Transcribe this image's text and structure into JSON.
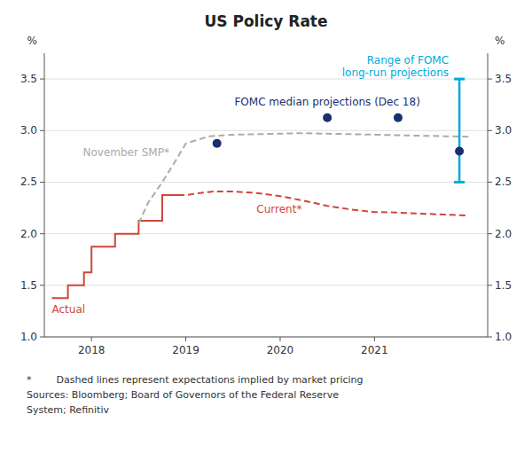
{
  "chart_data": {
    "type": "line",
    "title": "US Policy Rate",
    "ylabel": "%",
    "y2label": "%",
    "xlim": [
      2017.5,
      2022.2
    ],
    "xticks": [
      2018,
      2019,
      2020,
      2021
    ],
    "ylim": [
      1.0,
      3.75
    ],
    "yticks": [
      {
        "value": 1.0,
        "label": "1.0"
      },
      {
        "value": 1.5,
        "label": "1.5"
      },
      {
        "value": 2.0,
        "label": "2.0"
      },
      {
        "value": 2.5,
        "label": "2.5"
      },
      {
        "value": 3.0,
        "label": "3.0"
      },
      {
        "value": 3.5,
        "label": "3.5"
      }
    ],
    "y2lim": [
      1.0,
      3.75
    ],
    "y2ticks": [
      {
        "value": 1.0,
        "label": "1.0"
      },
      {
        "value": 1.5,
        "label": "1.5"
      },
      {
        "value": 2.0,
        "label": "2.0"
      },
      {
        "value": 2.5,
        "label": "2.5"
      },
      {
        "value": 3.0,
        "label": "3.0"
      },
      {
        "value": 3.5,
        "label": "3.5"
      }
    ],
    "grid": true,
    "series": [
      {
        "name": "Actual",
        "type": "line",
        "line_style": "solid",
        "color": "#D0453A",
        "x": [
          2017.58,
          2017.75,
          2017.75,
          2017.92,
          2017.92,
          2018.0,
          2018.0,
          2018.25,
          2018.25,
          2018.5,
          2018.5,
          2018.75,
          2018.75,
          2018.92,
          2018.92
        ],
        "values": [
          1.375,
          1.375,
          1.5,
          1.5,
          1.625,
          1.625,
          1.875,
          1.875,
          2.0,
          2.0,
          2.125,
          2.125,
          2.375,
          2.375,
          2.375
        ]
      },
      {
        "name": "Current*",
        "type": "line",
        "line_style": "dashed",
        "color": "#D0453A",
        "x": [
          2018.92,
          2019.0,
          2019.15,
          2019.3,
          2019.5,
          2019.75,
          2020.0,
          2020.25,
          2020.5,
          2020.75,
          2021.0,
          2021.25,
          2021.5,
          2021.75,
          2022.0
        ],
        "values": [
          2.375,
          2.375,
          2.395,
          2.41,
          2.41,
          2.395,
          2.365,
          2.32,
          2.27,
          2.235,
          2.21,
          2.205,
          2.195,
          2.185,
          2.175
        ]
      },
      {
        "name": "November SMP*",
        "type": "line",
        "line_style": "dashed",
        "color": "#AAAAAA",
        "x": [
          2018.5,
          2018.6,
          2018.75,
          2018.9,
          2019.0,
          2019.25,
          2019.5,
          2019.75,
          2020.0,
          2020.25,
          2020.5,
          2020.75,
          2021.0,
          2021.25,
          2021.5,
          2021.75,
          2022.0
        ],
        "values": [
          2.1,
          2.3,
          2.5,
          2.72,
          2.875,
          2.945,
          2.96,
          2.965,
          2.97,
          2.975,
          2.97,
          2.965,
          2.96,
          2.955,
          2.95,
          2.945,
          2.94
        ]
      },
      {
        "name": "FOMC median projections (Dec 18)",
        "type": "scatter",
        "marker": "circle",
        "color": "#1A2F6E",
        "x": [
          2019.33,
          2020.5,
          2021.25
        ],
        "values": [
          2.875,
          3.125,
          3.125
        ]
      },
      {
        "name": "Range of FOMC\nlong-run projections",
        "type": "range",
        "color": "#00AADD",
        "x": [
          2021.9
        ],
        "low": [
          2.5
        ],
        "high": [
          3.5
        ],
        "values": [
          2.8
        ]
      }
    ],
    "footnotes": [
      "*        Dashed lines represent expectations implied by market pricing",
      "Sources: Bloomberg; Board of Governors of the Federal Reserve",
      "System; Refinitiv"
    ]
  }
}
